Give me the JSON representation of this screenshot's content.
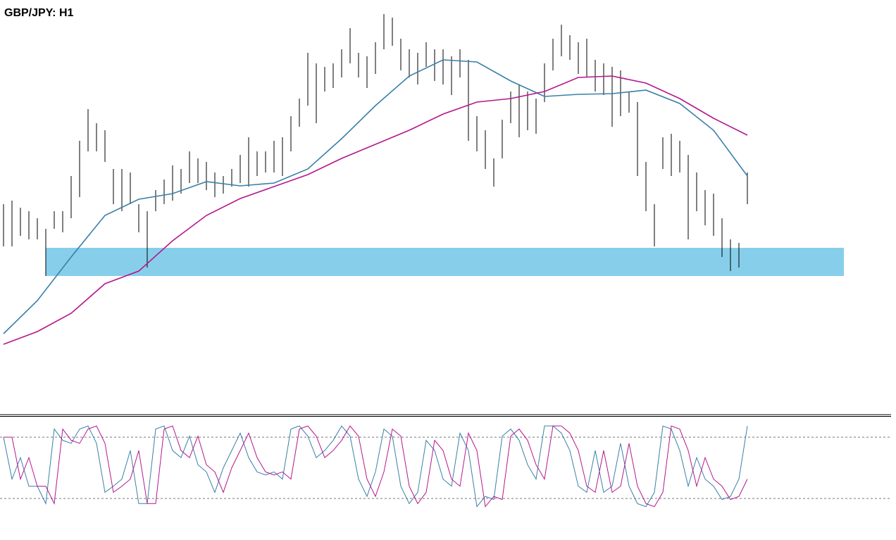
{
  "chart_data": [
    {
      "type": "hlbar",
      "title": "GBP/JPY: H1",
      "ylim": [
        0,
        588
      ],
      "high": [
        298,
        303,
        293,
        288,
        278,
        263,
        288,
        288,
        338,
        388,
        433,
        413,
        403,
        348,
        348,
        343,
        298,
        288,
        318,
        333,
        353,
        348,
        373,
        363,
        358,
        343,
        338,
        348,
        368,
        393,
        373,
        373,
        388,
        393,
        423,
        448,
        513,
        498,
        493,
        498,
        518,
        548,
        513,
        508,
        528,
        568,
        563,
        533,
        518,
        513,
        528,
        518,
        518,
        508,
        518,
        503,
        423,
        403,
        363,
        418,
        458,
        468,
        458,
        448,
        498,
        533,
        553,
        538,
        528,
        533,
        503,
        498,
        493,
        488,
        458,
        443,
        358,
        298,
        393,
        398,
        388,
        368,
        343,
        318,
        313,
        278,
        248,
        243,
        343
      ],
      "low": [
        238,
        238,
        253,
        248,
        248,
        196,
        263,
        258,
        278,
        308,
        373,
        373,
        358,
        298,
        288,
        298,
        258,
        208,
        288,
        298,
        303,
        313,
        328,
        328,
        318,
        308,
        313,
        323,
        328,
        323,
        338,
        343,
        343,
        338,
        373,
        408,
        438,
        413,
        458,
        463,
        478,
        498,
        478,
        463,
        483,
        518,
        523,
        488,
        478,
        468,
        493,
        473,
        468,
        453,
        478,
        388,
        373,
        348,
        323,
        363,
        413,
        393,
        403,
        398,
        443,
        488,
        508,
        503,
        483,
        478,
        458,
        453,
        408,
        423,
        428,
        338,
        288,
        238,
        348,
        338,
        343,
        248,
        288,
        268,
        253,
        223,
        203,
        208,
        298
      ],
      "bar_color": "#000000",
      "series": [
        {
          "color": "#3a7fa8",
          "step": 4,
          "values": [
            114,
            161,
            223,
            282,
            305,
            313,
            330,
            324,
            328,
            348,
            391,
            438,
            480,
            503,
            500,
            473,
            451,
            454,
            455,
            460,
            441,
            403,
            338
          ]
        },
        {
          "color": "#b5178c",
          "step": 4,
          "values": [
            99,
            117,
            143,
            185,
            203,
            246,
            282,
            306,
            323,
            340,
            363,
            383,
            403,
            426,
            443,
            448,
            458,
            478,
            480,
            470,
            448,
            420,
            396
          ]
        }
      ],
      "zone": {
        "low": 196,
        "high": 236,
        "color": "#87ceeb"
      }
    },
    {
      "type": "line",
      "ylim": [
        0,
        100
      ],
      "levels": [
        80,
        20
      ],
      "series": [
        {
          "color": "#3a7fa8",
          "values": [
            80,
            39,
            60,
            32,
            32,
            15,
            88,
            77,
            74,
            88,
            91,
            74,
            26,
            32,
            39,
            67,
            15,
            15,
            88,
            91,
            67,
            60,
            81,
            53,
            46,
            26,
            50,
            67,
            84,
            60,
            46,
            43,
            46,
            39,
            88,
            91,
            81,
            60,
            67,
            77,
            91,
            81,
            39,
            22,
            46,
            88,
            81,
            32,
            15,
            26,
            77,
            67,
            39,
            32,
            84,
            67,
            12,
            22,
            19,
            81,
            88,
            77,
            53,
            39,
            91,
            91,
            84,
            67,
            32,
            26,
            67,
            26,
            32,
            74,
            32,
            15,
            12,
            26,
            91,
            88,
            67,
            32,
            60,
            39,
            32,
            19,
            22,
            39,
            91
          ]
        },
        {
          "color": "#b5178c",
          "values": [
            80,
            80,
            39,
            60,
            32,
            32,
            15,
            88,
            77,
            74,
            88,
            91,
            74,
            26,
            32,
            39,
            67,
            15,
            15,
            88,
            91,
            67,
            60,
            81,
            53,
            46,
            26,
            50,
            67,
            84,
            60,
            46,
            43,
            46,
            39,
            88,
            91,
            81,
            60,
            67,
            77,
            91,
            81,
            39,
            22,
            46,
            88,
            81,
            32,
            15,
            26,
            77,
            67,
            39,
            32,
            84,
            67,
            12,
            22,
            19,
            81,
            88,
            77,
            53,
            39,
            91,
            91,
            84,
            67,
            32,
            26,
            67,
            26,
            32,
            74,
            32,
            15,
            12,
            26,
            91,
            88,
            67,
            32,
            60,
            39,
            32,
            19,
            22,
            39
          ]
        }
      ]
    }
  ]
}
